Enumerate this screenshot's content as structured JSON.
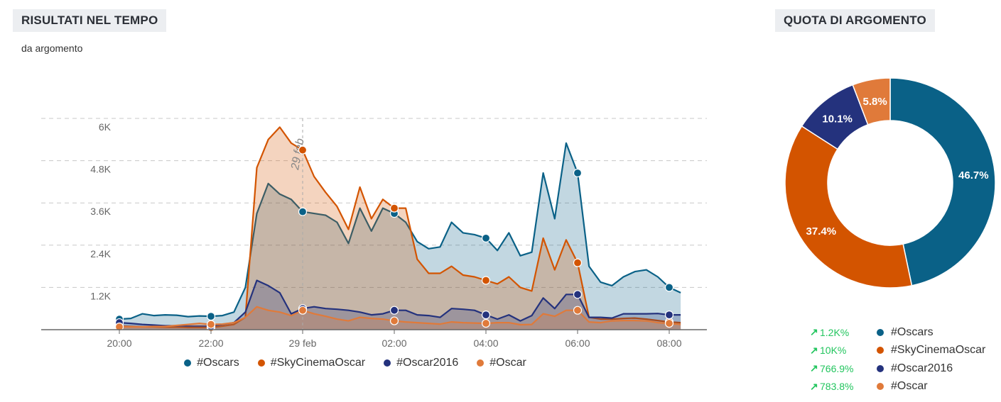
{
  "header": {
    "left_title": "RISULTATI NEL TEMPO",
    "subtitle": "da argomento",
    "right_title": "QUOTA DI ARGOMENTO"
  },
  "chart_data": [
    {
      "type": "area",
      "title": "RISULTATI NEL TEMPO",
      "subtitle": "da argomento",
      "y_ticks": [
        "1.2K",
        "2.4K",
        "3.6K",
        "4.8K",
        "6K"
      ],
      "y_tick_values": [
        1200,
        2400,
        3600,
        4800,
        6000
      ],
      "x_ticks": [
        "20:00",
        "22:00",
        "29 feb",
        "02:00",
        "04:00",
        "06:00",
        "08:00"
      ],
      "x_tick_hours": [
        0,
        2,
        4,
        6,
        8,
        10,
        12
      ],
      "date_marker": {
        "label": "29 feb",
        "hour": 4
      },
      "x_range_hours": [
        -1.7,
        12.4
      ],
      "ylim": [
        0,
        6000
      ],
      "grid": true,
      "legend_position": "bottom",
      "series": [
        {
          "name": "#Oscars",
          "color": "#0a6187",
          "points": [
            [
              0,
              300
            ],
            [
              0.25,
              320
            ],
            [
              0.5,
              450
            ],
            [
              0.75,
              400
            ],
            [
              1,
              420
            ],
            [
              1.25,
              410
            ],
            [
              1.5,
              370
            ],
            [
              1.75,
              390
            ],
            [
              2,
              380
            ],
            [
              2.25,
              400
            ],
            [
              2.5,
              500
            ],
            [
              2.75,
              1200
            ],
            [
              3,
              3300
            ],
            [
              3.25,
              4150
            ],
            [
              3.5,
              3850
            ],
            [
              3.75,
              3700
            ],
            [
              4,
              3350
            ],
            [
              4.25,
              3300
            ],
            [
              4.5,
              3250
            ],
            [
              4.75,
              3050
            ],
            [
              5,
              2450
            ],
            [
              5.25,
              3450
            ],
            [
              5.5,
              2800
            ],
            [
              5.75,
              3450
            ],
            [
              6,
              3300
            ],
            [
              6.25,
              3050
            ],
            [
              6.5,
              2500
            ],
            [
              6.75,
              2300
            ],
            [
              7,
              2350
            ],
            [
              7.25,
              3050
            ],
            [
              7.5,
              2750
            ],
            [
              7.75,
              2700
            ],
            [
              8,
              2600
            ],
            [
              8.25,
              2250
            ],
            [
              8.5,
              2750
            ],
            [
              8.75,
              2100
            ],
            [
              9,
              2200
            ],
            [
              9.25,
              4450
            ],
            [
              9.5,
              3150
            ],
            [
              9.75,
              5300
            ],
            [
              10,
              4450
            ],
            [
              10.25,
              1800
            ],
            [
              10.5,
              1350
            ],
            [
              10.75,
              1250
            ],
            [
              11,
              1500
            ],
            [
              11.25,
              1650
            ],
            [
              11.5,
              1700
            ],
            [
              11.75,
              1500
            ],
            [
              12,
              1200
            ],
            [
              12.25,
              1050
            ]
          ],
          "markers": [
            0,
            2,
            4,
            6,
            8,
            10,
            12
          ]
        },
        {
          "name": "#SkyCinemaOscar",
          "color": "#d35400",
          "points": [
            [
              0,
              100
            ],
            [
              0.25,
              90
            ],
            [
              0.5,
              80
            ],
            [
              0.75,
              80
            ],
            [
              1,
              70
            ],
            [
              1.25,
              70
            ],
            [
              1.5,
              60
            ],
            [
              1.75,
              60
            ],
            [
              2,
              60
            ],
            [
              2.25,
              100
            ],
            [
              2.5,
              150
            ],
            [
              2.75,
              350
            ],
            [
              3,
              4600
            ],
            [
              3.25,
              5400
            ],
            [
              3.5,
              5750
            ],
            [
              3.75,
              5300
            ],
            [
              4,
              5100
            ],
            [
              4.25,
              4350
            ],
            [
              4.5,
              3900
            ],
            [
              4.75,
              3500
            ],
            [
              5,
              2850
            ],
            [
              5.25,
              4050
            ],
            [
              5.5,
              3150
            ],
            [
              5.75,
              3700
            ],
            [
              6,
              3450
            ],
            [
              6.25,
              3450
            ],
            [
              6.5,
              2000
            ],
            [
              6.75,
              1600
            ],
            [
              7,
              1600
            ],
            [
              7.25,
              1800
            ],
            [
              7.5,
              1550
            ],
            [
              7.75,
              1500
            ],
            [
              8,
              1400
            ],
            [
              8.25,
              1300
            ],
            [
              8.5,
              1500
            ],
            [
              8.75,
              1200
            ],
            [
              9,
              1100
            ],
            [
              9.25,
              2600
            ],
            [
              9.5,
              1700
            ],
            [
              9.75,
              2550
            ],
            [
              10,
              1900
            ],
            [
              10.25,
              350
            ],
            [
              10.5,
              300
            ],
            [
              10.75,
              300
            ],
            [
              11,
              320
            ],
            [
              11.25,
              330
            ],
            [
              11.5,
              300
            ],
            [
              11.75,
              260
            ],
            [
              12,
              220
            ],
            [
              12.25,
              200
            ]
          ],
          "markers": [
            0,
            2,
            4,
            6,
            8,
            10,
            12
          ]
        },
        {
          "name": "#Oscar2016",
          "color": "#24327d",
          "points": [
            [
              0,
              200
            ],
            [
              0.25,
              180
            ],
            [
              0.5,
              150
            ],
            [
              0.75,
              130
            ],
            [
              1,
              110
            ],
            [
              1.25,
              110
            ],
            [
              1.5,
              100
            ],
            [
              1.75,
              100
            ],
            [
              2,
              100
            ],
            [
              2.25,
              150
            ],
            [
              2.5,
              200
            ],
            [
              2.75,
              500
            ],
            [
              3,
              1400
            ],
            [
              3.25,
              1250
            ],
            [
              3.5,
              1050
            ],
            [
              3.75,
              450
            ],
            [
              4,
              600
            ],
            [
              4.25,
              650
            ],
            [
              4.5,
              600
            ],
            [
              4.75,
              580
            ],
            [
              5,
              550
            ],
            [
              5.25,
              500
            ],
            [
              5.5,
              420
            ],
            [
              5.75,
              450
            ],
            [
              6,
              550
            ],
            [
              6.25,
              550
            ],
            [
              6.5,
              420
            ],
            [
              6.75,
              400
            ],
            [
              7,
              350
            ],
            [
              7.25,
              600
            ],
            [
              7.5,
              580
            ],
            [
              7.75,
              550
            ],
            [
              8,
              420
            ],
            [
              8.25,
              300
            ],
            [
              8.5,
              420
            ],
            [
              8.75,
              250
            ],
            [
              9,
              400
            ],
            [
              9.25,
              900
            ],
            [
              9.5,
              600
            ],
            [
              9.75,
              1000
            ],
            [
              10,
              1000
            ],
            [
              10.25,
              350
            ],
            [
              10.5,
              350
            ],
            [
              10.75,
              330
            ],
            [
              11,
              450
            ],
            [
              11.25,
              450
            ],
            [
              11.5,
              450
            ],
            [
              11.75,
              460
            ],
            [
              12,
              420
            ],
            [
              12.25,
              420
            ]
          ],
          "markers": [
            0,
            2,
            4,
            6,
            8,
            10,
            12
          ]
        },
        {
          "name": "#Oscar",
          "color": "#e07a3a",
          "points": [
            [
              0,
              80
            ],
            [
              0.25,
              80
            ],
            [
              0.5,
              80
            ],
            [
              0.75,
              90
            ],
            [
              1,
              90
            ],
            [
              1.25,
              120
            ],
            [
              1.5,
              150
            ],
            [
              1.75,
              180
            ],
            [
              2,
              150
            ],
            [
              2.25,
              160
            ],
            [
              2.5,
              200
            ],
            [
              2.75,
              350
            ],
            [
              3,
              650
            ],
            [
              3.25,
              550
            ],
            [
              3.5,
              500
            ],
            [
              3.75,
              400
            ],
            [
              4,
              550
            ],
            [
              4.25,
              450
            ],
            [
              4.5,
              380
            ],
            [
              4.75,
              300
            ],
            [
              5,
              250
            ],
            [
              5.25,
              350
            ],
            [
              5.5,
              320
            ],
            [
              5.75,
              300
            ],
            [
              6,
              250
            ],
            [
              6.25,
              220
            ],
            [
              6.5,
              200
            ],
            [
              6.75,
              180
            ],
            [
              7,
              160
            ],
            [
              7.25,
              220
            ],
            [
              7.5,
              200
            ],
            [
              7.75,
              190
            ],
            [
              8,
              180
            ],
            [
              8.25,
              200
            ],
            [
              8.5,
              200
            ],
            [
              8.75,
              140
            ],
            [
              9,
              150
            ],
            [
              9.25,
              450
            ],
            [
              9.5,
              380
            ],
            [
              9.75,
              550
            ],
            [
              10,
              550
            ],
            [
              10.25,
              220
            ],
            [
              10.5,
              200
            ],
            [
              10.75,
              250
            ],
            [
              11,
              260
            ],
            [
              11.25,
              260
            ],
            [
              11.5,
              250
            ],
            [
              11.75,
              200
            ],
            [
              12,
              180
            ],
            [
              12.25,
              150
            ]
          ],
          "markers": [
            0,
            2,
            4,
            6,
            8,
            10,
            12
          ]
        }
      ]
    },
    {
      "type": "pie",
      "title": "QUOTA DI ARGOMENTO",
      "donut": true,
      "slices": [
        {
          "name": "#Oscars",
          "value": 46.7,
          "label": "46.7%",
          "color": "#0a6187"
        },
        {
          "name": "#SkyCinemaOscar",
          "value": 37.4,
          "label": "37.4%",
          "color": "#d35400"
        },
        {
          "name": "#Oscar2016",
          "value": 10.1,
          "label": "10.1%",
          "color": "#24327d"
        },
        {
          "name": "#Oscar",
          "value": 5.8,
          "label": "5.8%",
          "color": "#e07a3a"
        }
      ]
    }
  ],
  "share_changes": [
    {
      "arrow": "↗",
      "delta": "1.2K%",
      "name": "#Oscars",
      "color": "#0a6187"
    },
    {
      "arrow": "↗",
      "delta": "10K%",
      "name": "#SkyCinemaOscar",
      "color": "#d35400"
    },
    {
      "arrow": "↗",
      "delta": "766.9%",
      "name": "#Oscar2016",
      "color": "#24327d"
    },
    {
      "arrow": "↗",
      "delta": "783.8%",
      "name": "#Oscar",
      "color": "#e07a3a"
    }
  ]
}
